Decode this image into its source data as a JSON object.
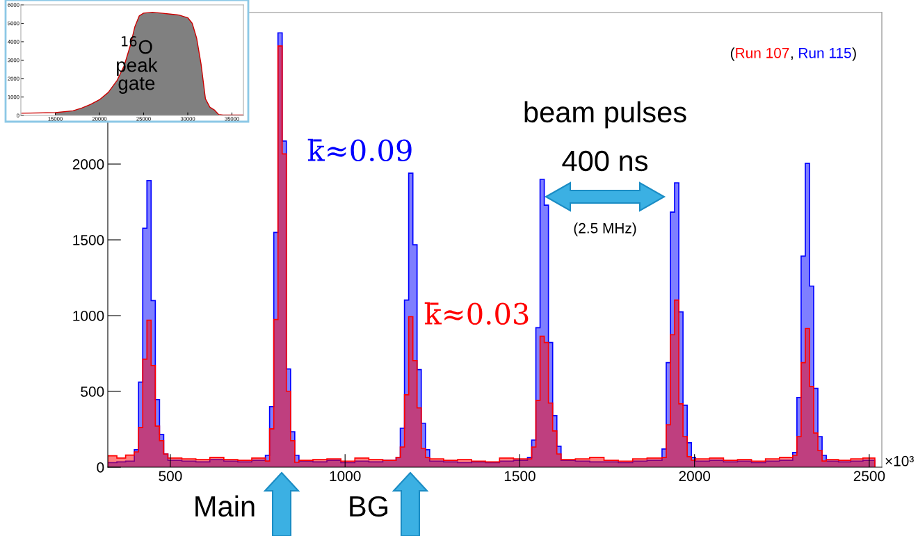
{
  "chart_data": [
    {
      "type": "histogram",
      "bins": [
        321,
        347,
        372,
        397,
        409,
        421,
        433,
        445,
        457,
        469,
        481,
        493,
        533,
        573,
        613,
        653,
        693,
        733,
        772,
        784,
        796,
        808,
        820,
        832,
        844,
        856,
        868,
        908,
        948,
        988,
        1028,
        1068,
        1108,
        1146,
        1158,
        1170,
        1182,
        1194,
        1206,
        1218,
        1230,
        1242,
        1282,
        1322,
        1362,
        1402,
        1442,
        1482,
        1522,
        1534,
        1546,
        1558,
        1570,
        1582,
        1594,
        1606,
        1618,
        1659,
        1700,
        1741,
        1782,
        1823,
        1864,
        1907,
        1919,
        1931,
        1943,
        1955,
        1967,
        1979,
        1991,
        2003,
        2043,
        2083,
        2123,
        2163,
        2203,
        2243,
        2281,
        2293,
        2305,
        2317,
        2329,
        2341,
        2353,
        2365,
        2377,
        2412,
        2447,
        2482,
        2516
      ],
      "series": [
        {
          "name": "Run 115",
          "color": "#0000ff",
          "values": [
            30,
            35,
            40,
            115,
            561,
            1577,
            1891,
            1099,
            446,
            216,
            87,
            45,
            40,
            35,
            50,
            40,
            35,
            45,
            78,
            400,
            1549,
            2866,
            2152,
            648,
            234,
            78,
            40,
            35,
            45,
            30,
            40,
            35,
            45,
            64,
            257,
            1103,
            1940,
            1467,
            644,
            290,
            115,
            40,
            35,
            30,
            35,
            30,
            40,
            45,
            64,
            179,
            920,
            1899,
            1729,
            823,
            340,
            138,
            45,
            40,
            35,
            35,
            30,
            40,
            45,
            120,
            690,
            1683,
            1876,
            1025,
            409,
            161,
            64,
            40,
            45,
            35,
            40,
            30,
            40,
            45,
            97,
            460,
            1393,
            2005,
            1195,
            520,
            202,
            78,
            40,
            35,
            40,
            45
          ]
        },
        {
          "name": "Run 107",
          "color": "#ff0000",
          "values": [
            75,
            60,
            80,
            101,
            262,
            713,
            970,
            671,
            271,
            175,
            87,
            60,
            55,
            50,
            65,
            50,
            45,
            60,
            41,
            253,
            974,
            2779,
            2067,
            501,
            175,
            32,
            45,
            50,
            55,
            40,
            60,
            50,
            45,
            64,
            133,
            478,
            993,
            703,
            391,
            124,
            64,
            55,
            45,
            50,
            40,
            35,
            60,
            55,
            55,
            133,
            441,
            864,
            823,
            423,
            239,
            87,
            50,
            55,
            65,
            45,
            40,
            55,
            60,
            64,
            280,
            874,
            1103,
            418,
            202,
            69,
            46,
            55,
            60,
            45,
            50,
            40,
            55,
            65,
            78,
            202,
            690,
            915,
            533,
            225,
            110,
            41,
            50,
            45,
            55,
            60
          ]
        }
      ],
      "xlim": [
        321,
        2536
      ],
      "xticks": [
        500,
        1000,
        1500,
        2000,
        2500
      ],
      "ylim": [
        0,
        3000
      ],
      "yticks": [
        0,
        500,
        1000,
        1500,
        2000
      ],
      "legend": "top right",
      "annotations": [
        "beam pulses",
        "400 ns",
        "(2.5 MHz)",
        "k̄≈0.09",
        "k̄≈0.03",
        "Main",
        "BG",
        "×10³",
        "(",
        ", ",
        ")"
      ]
    },
    {
      "type": "line",
      "series": [
        {
          "type": "area",
          "color": "#808080",
          "x": [
            15000,
            17000,
            18000,
            19000,
            20000,
            21000,
            22000,
            22800,
            23500,
            24000,
            24500,
            25000,
            26000,
            27000,
            28000,
            29000,
            30000,
            30500,
            31000,
            31500,
            32000,
            32500,
            33000,
            33500
          ],
          "values": [
            150,
            250,
            400,
            600,
            850,
            1250,
            1900,
            2700,
            3800,
            4800,
            5400,
            5550,
            5600,
            5550,
            5500,
            5450,
            5300,
            5000,
            4200,
            2800,
            900,
            450,
            300,
            50
          ]
        },
        {
          "type": "line",
          "color": "#cc0000",
          "x": [
            11200,
            15000,
            17000,
            18000,
            19000,
            20000,
            21000,
            22000,
            22800,
            23500,
            24000,
            24500,
            25000,
            26000,
            27000,
            28000,
            29000,
            30000,
            30500,
            31000,
            31500,
            32000,
            32500,
            33000,
            33500,
            34000,
            36300
          ],
          "values": [
            120,
            150,
            250,
            400,
            600,
            850,
            1250,
            1900,
            2700,
            3800,
            4800,
            5400,
            5550,
            5600,
            5550,
            5500,
            5450,
            5300,
            5000,
            4200,
            2800,
            900,
            450,
            300,
            50,
            20,
            20
          ]
        }
      ],
      "xlim": [
        11100,
        36300
      ],
      "xticks": [
        15000,
        20000,
        25000,
        30000,
        35000
      ],
      "ylim": [
        0,
        6000
      ],
      "yticks": [
        0,
        1000,
        2000,
        3000,
        4000,
        5000,
        6000
      ],
      "annotations": [
        "$^{16}$O\npeak\ngate"
      ]
    }
  ]
}
